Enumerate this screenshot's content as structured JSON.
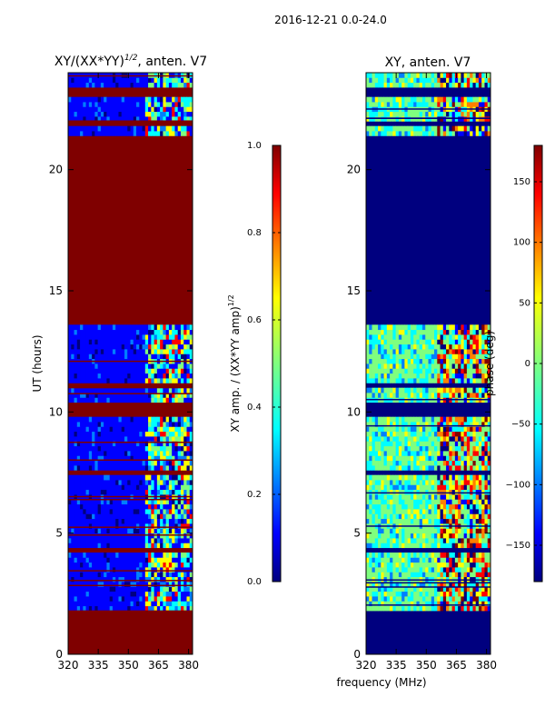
{
  "figure": {
    "suptitle": "2016-12-21 0.0-24.0",
    "shared_xlabel": "frequency (MHz)"
  },
  "colors": {
    "jet": [
      "#00007f",
      "#0000ff",
      "#007fff",
      "#00ffff",
      "#7fff7f",
      "#ffff00",
      "#ff7f00",
      "#ff0000",
      "#7f0000"
    ]
  },
  "chart_data": [
    {
      "type": "heatmap",
      "title_main": "XY/(XX*YY)",
      "title_sup": "1/2",
      "title_tail": ", anten. V7",
      "ylabel": "UT (hours)",
      "xlim": [
        320,
        382
      ],
      "ylim": [
        0,
        24
      ],
      "xticks": [
        "320",
        "335",
        "350",
        "365",
        "380"
      ],
      "xtick_values": [
        320,
        335,
        350,
        365,
        380
      ],
      "yticks": [
        "0",
        "5",
        "10",
        "15",
        "20"
      ],
      "ytick_values": [
        0,
        5,
        10,
        15,
        20
      ],
      "background_value": 1.0,
      "active_band_mhz": [
        359,
        382
      ],
      "dark_bands_ut": [
        [
          0,
          1.8
        ],
        [
          4.3,
          4.5
        ],
        [
          7.5,
          7.7
        ],
        [
          9.9,
          10.4
        ],
        [
          11.1,
          11.3
        ],
        [
          13.7,
          21.4
        ],
        [
          21.8,
          22.0
        ],
        [
          23.0,
          23.5
        ]
      ],
      "colorbar": {
        "label_main": "XY amp. / (XX*YY amp)",
        "label_sup": "1/2",
        "range": [
          0,
          1
        ],
        "ticks": [
          "0.0",
          "0.2",
          "0.4",
          "0.6",
          "0.8",
          "1.0"
        ],
        "tick_values": [
          0,
          0.2,
          0.4,
          0.6,
          0.8,
          1.0
        ]
      }
    },
    {
      "type": "heatmap",
      "title": "XY, anten. V7",
      "xlim": [
        320,
        382
      ],
      "ylim": [
        0,
        24
      ],
      "xticks": [
        "320",
        "335",
        "350",
        "365",
        "380"
      ],
      "xtick_values": [
        320,
        335,
        350,
        365,
        380
      ],
      "yticks": [
        "0",
        "5",
        "10",
        "15",
        "20"
      ],
      "ytick_values": [
        0,
        5,
        10,
        15,
        20
      ],
      "background_value": -180,
      "active_band_mhz": [
        355,
        382
      ],
      "dark_bands_ut": [
        [
          0,
          1.8
        ],
        [
          4.3,
          4.5
        ],
        [
          7.5,
          7.7
        ],
        [
          9.9,
          10.4
        ],
        [
          11.1,
          11.3
        ],
        [
          13.7,
          21.4
        ],
        [
          21.8,
          22.0
        ],
        [
          23.0,
          23.5
        ]
      ],
      "colorbar": {
        "label": "phase (deg)",
        "range": [
          -180,
          180
        ],
        "ticks": [
          "−150",
          "−100",
          "−50",
          "0",
          "50",
          "100",
          "150"
        ],
        "tick_values": [
          -150,
          -100,
          -50,
          0,
          50,
          100,
          150
        ]
      }
    }
  ]
}
